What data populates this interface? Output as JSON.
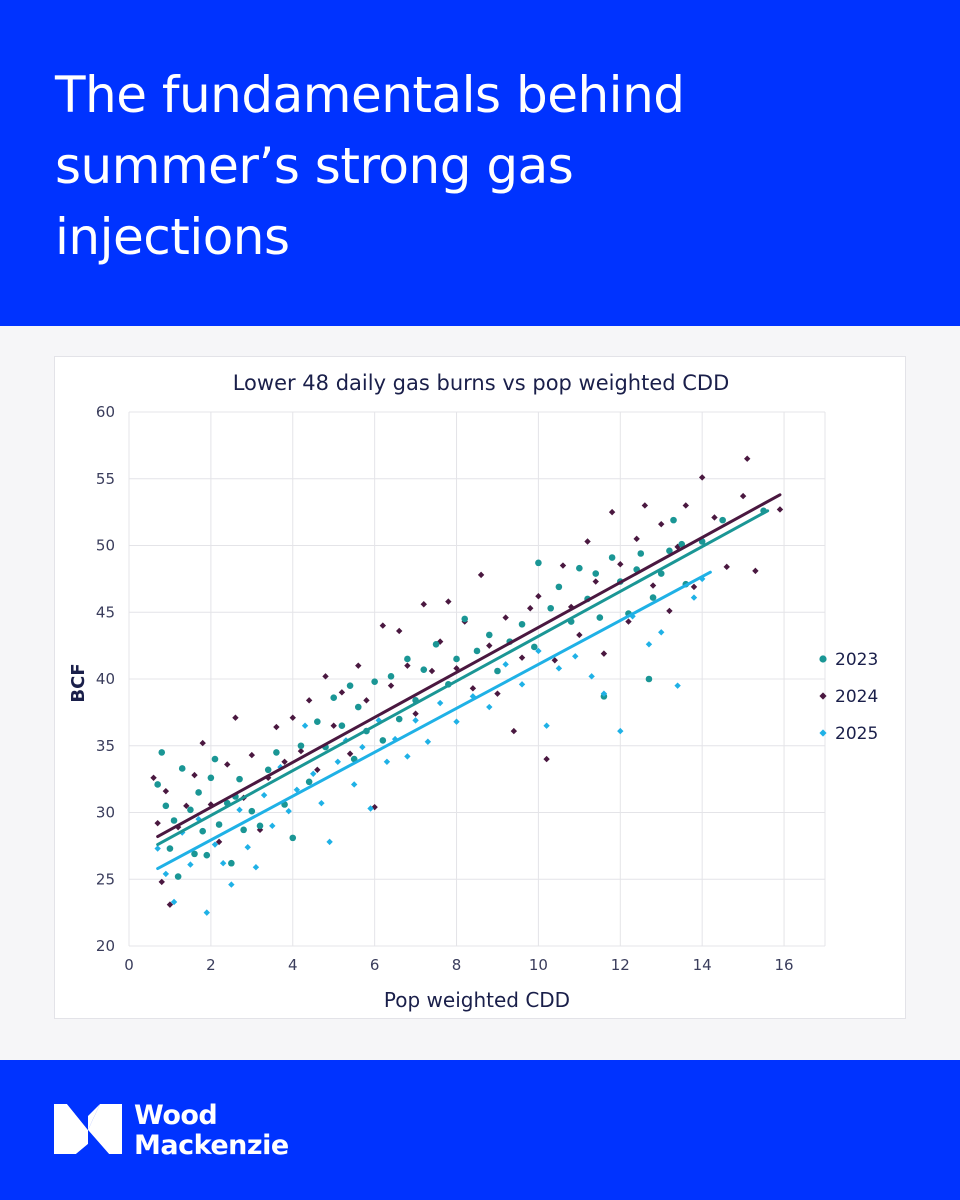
{
  "headline": "The fundamentals behind\nsummer’s strong gas\ninjections",
  "brand": {
    "line1": "Wood",
    "line2": "Mackenzie",
    "logo_icon": "wood-mackenzie-logo-icon"
  },
  "colors": {
    "brand_blue": "#0033ff",
    "s2023": "#1a9695",
    "s2024": "#4a1840",
    "s2025": "#1fb1e6"
  },
  "chart_data": {
    "type": "scatter",
    "title": "Lower 48 daily gas burns vs pop weighted CDD",
    "xlabel": "Pop weighted CDD",
    "ylabel": "BCF",
    "xlim": [
      0,
      17
    ],
    "ylim": [
      20,
      60
    ],
    "xticks": [
      0,
      2,
      4,
      6,
      8,
      10,
      12,
      14,
      16
    ],
    "yticks": [
      20,
      25,
      30,
      35,
      40,
      45,
      50,
      55,
      60
    ],
    "grid": true,
    "legend": "right",
    "series": [
      {
        "name": "2023",
        "marker": "circle",
        "trendline": [
          [
            0.7,
            27.6
          ],
          [
            15.6,
            52.6
          ]
        ],
        "points": [
          [
            0.7,
            32.1
          ],
          [
            0.8,
            34.5
          ],
          [
            0.9,
            30.5
          ],
          [
            1.0,
            27.3
          ],
          [
            1.1,
            29.4
          ],
          [
            1.2,
            25.2
          ],
          [
            1.3,
            33.3
          ],
          [
            1.5,
            30.2
          ],
          [
            1.6,
            26.9
          ],
          [
            1.7,
            31.5
          ],
          [
            1.8,
            28.6
          ],
          [
            1.9,
            26.8
          ],
          [
            2.0,
            32.6
          ],
          [
            2.1,
            34.0
          ],
          [
            2.2,
            29.1
          ],
          [
            2.4,
            30.7
          ],
          [
            2.5,
            26.2
          ],
          [
            2.6,
            31.2
          ],
          [
            2.7,
            32.5
          ],
          [
            2.8,
            28.7
          ],
          [
            3.0,
            30.1
          ],
          [
            3.2,
            29.0
          ],
          [
            3.4,
            33.2
          ],
          [
            3.6,
            34.5
          ],
          [
            3.8,
            30.6
          ],
          [
            4.0,
            28.1
          ],
          [
            4.2,
            35.0
          ],
          [
            4.4,
            32.3
          ],
          [
            4.6,
            36.8
          ],
          [
            4.8,
            34.9
          ],
          [
            5.0,
            38.6
          ],
          [
            5.2,
            36.5
          ],
          [
            5.4,
            39.5
          ],
          [
            5.5,
            34.0
          ],
          [
            5.6,
            37.9
          ],
          [
            5.8,
            36.1
          ],
          [
            6.0,
            39.8
          ],
          [
            6.2,
            35.4
          ],
          [
            6.4,
            40.2
          ],
          [
            6.6,
            37.0
          ],
          [
            6.8,
            41.5
          ],
          [
            7.0,
            38.4
          ],
          [
            7.2,
            40.7
          ],
          [
            7.5,
            42.6
          ],
          [
            7.8,
            39.6
          ],
          [
            8.0,
            41.5
          ],
          [
            8.2,
            44.5
          ],
          [
            8.5,
            42.1
          ],
          [
            8.8,
            43.3
          ],
          [
            9.0,
            40.6
          ],
          [
            9.3,
            42.8
          ],
          [
            9.6,
            44.1
          ],
          [
            9.9,
            42.4
          ],
          [
            10.0,
            48.7
          ],
          [
            10.3,
            45.3
          ],
          [
            10.5,
            46.9
          ],
          [
            10.8,
            44.3
          ],
          [
            11.0,
            48.3
          ],
          [
            11.2,
            46.0
          ],
          [
            11.4,
            47.9
          ],
          [
            11.5,
            44.6
          ],
          [
            11.6,
            38.7
          ],
          [
            11.8,
            49.1
          ],
          [
            12.0,
            47.3
          ],
          [
            12.2,
            44.9
          ],
          [
            12.4,
            48.2
          ],
          [
            12.5,
            49.4
          ],
          [
            12.7,
            40.0
          ],
          [
            12.8,
            46.1
          ],
          [
            13.0,
            47.9
          ],
          [
            13.2,
            49.6
          ],
          [
            13.3,
            51.9
          ],
          [
            13.5,
            50.1
          ],
          [
            13.6,
            47.1
          ],
          [
            14.0,
            50.3
          ],
          [
            14.5,
            51.9
          ],
          [
            15.5,
            52.6
          ]
        ]
      },
      {
        "name": "2024",
        "marker": "diamond",
        "trendline": [
          [
            0.7,
            28.2
          ],
          [
            15.9,
            53.8
          ]
        ],
        "points": [
          [
            0.6,
            32.6
          ],
          [
            0.7,
            29.2
          ],
          [
            0.8,
            24.8
          ],
          [
            0.9,
            31.6
          ],
          [
            1.0,
            23.1
          ],
          [
            1.2,
            28.9
          ],
          [
            1.4,
            30.5
          ],
          [
            1.6,
            32.8
          ],
          [
            1.8,
            35.2
          ],
          [
            2.0,
            30.6
          ],
          [
            2.2,
            27.8
          ],
          [
            2.4,
            33.6
          ],
          [
            2.6,
            37.1
          ],
          [
            2.8,
            31.1
          ],
          [
            3.0,
            34.3
          ],
          [
            3.2,
            28.7
          ],
          [
            3.4,
            32.6
          ],
          [
            3.6,
            36.4
          ],
          [
            3.8,
            33.8
          ],
          [
            4.0,
            37.1
          ],
          [
            4.2,
            34.6
          ],
          [
            4.4,
            38.4
          ],
          [
            4.6,
            33.2
          ],
          [
            4.8,
            40.2
          ],
          [
            5.0,
            36.5
          ],
          [
            5.2,
            39.0
          ],
          [
            5.4,
            34.4
          ],
          [
            5.6,
            41.0
          ],
          [
            5.8,
            38.4
          ],
          [
            6.0,
            30.4
          ],
          [
            6.2,
            44.0
          ],
          [
            6.4,
            39.5
          ],
          [
            6.6,
            43.6
          ],
          [
            6.8,
            41.0
          ],
          [
            7.0,
            37.4
          ],
          [
            7.2,
            45.6
          ],
          [
            7.4,
            40.6
          ],
          [
            7.6,
            42.8
          ],
          [
            7.8,
            45.8
          ],
          [
            8.0,
            40.8
          ],
          [
            8.2,
            44.3
          ],
          [
            8.4,
            39.3
          ],
          [
            8.6,
            47.8
          ],
          [
            8.8,
            42.5
          ],
          [
            9.0,
            38.9
          ],
          [
            9.2,
            44.6
          ],
          [
            9.4,
            36.1
          ],
          [
            9.6,
            41.6
          ],
          [
            9.8,
            45.3
          ],
          [
            10.0,
            46.2
          ],
          [
            10.2,
            34.0
          ],
          [
            10.4,
            41.4
          ],
          [
            10.6,
            48.5
          ],
          [
            10.8,
            45.4
          ],
          [
            11.0,
            43.3
          ],
          [
            11.2,
            50.3
          ],
          [
            11.4,
            47.3
          ],
          [
            11.6,
            41.9
          ],
          [
            11.8,
            52.5
          ],
          [
            12.0,
            48.6
          ],
          [
            12.2,
            44.3
          ],
          [
            12.4,
            50.5
          ],
          [
            12.6,
            53.0
          ],
          [
            12.8,
            47.0
          ],
          [
            13.0,
            51.6
          ],
          [
            13.2,
            45.1
          ],
          [
            13.4,
            49.9
          ],
          [
            13.6,
            53.0
          ],
          [
            13.8,
            46.9
          ],
          [
            14.0,
            55.1
          ],
          [
            14.3,
            52.1
          ],
          [
            14.6,
            48.4
          ],
          [
            15.0,
            53.7
          ],
          [
            15.1,
            56.5
          ],
          [
            15.3,
            48.1
          ],
          [
            15.9,
            52.7
          ]
        ]
      },
      {
        "name": "2025",
        "marker": "diamond",
        "trendline": [
          [
            0.7,
            25.8
          ],
          [
            14.2,
            48.0
          ]
        ],
        "points": [
          [
            0.7,
            27.3
          ],
          [
            0.9,
            25.4
          ],
          [
            1.1,
            23.3
          ],
          [
            1.3,
            28.5
          ],
          [
            1.5,
            26.1
          ],
          [
            1.7,
            29.5
          ],
          [
            1.9,
            22.5
          ],
          [
            2.1,
            27.6
          ],
          [
            2.3,
            26.2
          ],
          [
            2.5,
            24.6
          ],
          [
            2.7,
            30.2
          ],
          [
            2.9,
            27.4
          ],
          [
            3.1,
            25.9
          ],
          [
            3.3,
            31.3
          ],
          [
            3.5,
            29.0
          ],
          [
            3.7,
            33.4
          ],
          [
            3.9,
            30.1
          ],
          [
            4.1,
            31.7
          ],
          [
            4.3,
            36.5
          ],
          [
            4.5,
            32.9
          ],
          [
            4.7,
            30.7
          ],
          [
            4.9,
            27.8
          ],
          [
            5.1,
            33.8
          ],
          [
            5.3,
            35.4
          ],
          [
            5.5,
            32.1
          ],
          [
            5.7,
            34.9
          ],
          [
            5.9,
            30.3
          ],
          [
            6.1,
            36.9
          ],
          [
            6.3,
            33.8
          ],
          [
            6.5,
            35.5
          ],
          [
            6.8,
            34.2
          ],
          [
            7.0,
            36.9
          ],
          [
            7.3,
            35.3
          ],
          [
            7.6,
            38.2
          ],
          [
            8.0,
            36.8
          ],
          [
            8.4,
            38.7
          ],
          [
            8.8,
            37.9
          ],
          [
            9.2,
            41.1
          ],
          [
            9.6,
            39.6
          ],
          [
            10.0,
            42.1
          ],
          [
            10.2,
            36.5
          ],
          [
            10.5,
            40.8
          ],
          [
            10.9,
            41.7
          ],
          [
            11.3,
            40.2
          ],
          [
            11.6,
            38.9
          ],
          [
            12.0,
            36.1
          ],
          [
            12.3,
            44.7
          ],
          [
            12.7,
            42.6
          ],
          [
            13.0,
            43.5
          ],
          [
            13.4,
            39.5
          ],
          [
            13.8,
            46.1
          ],
          [
            14.0,
            47.5
          ]
        ]
      }
    ]
  }
}
